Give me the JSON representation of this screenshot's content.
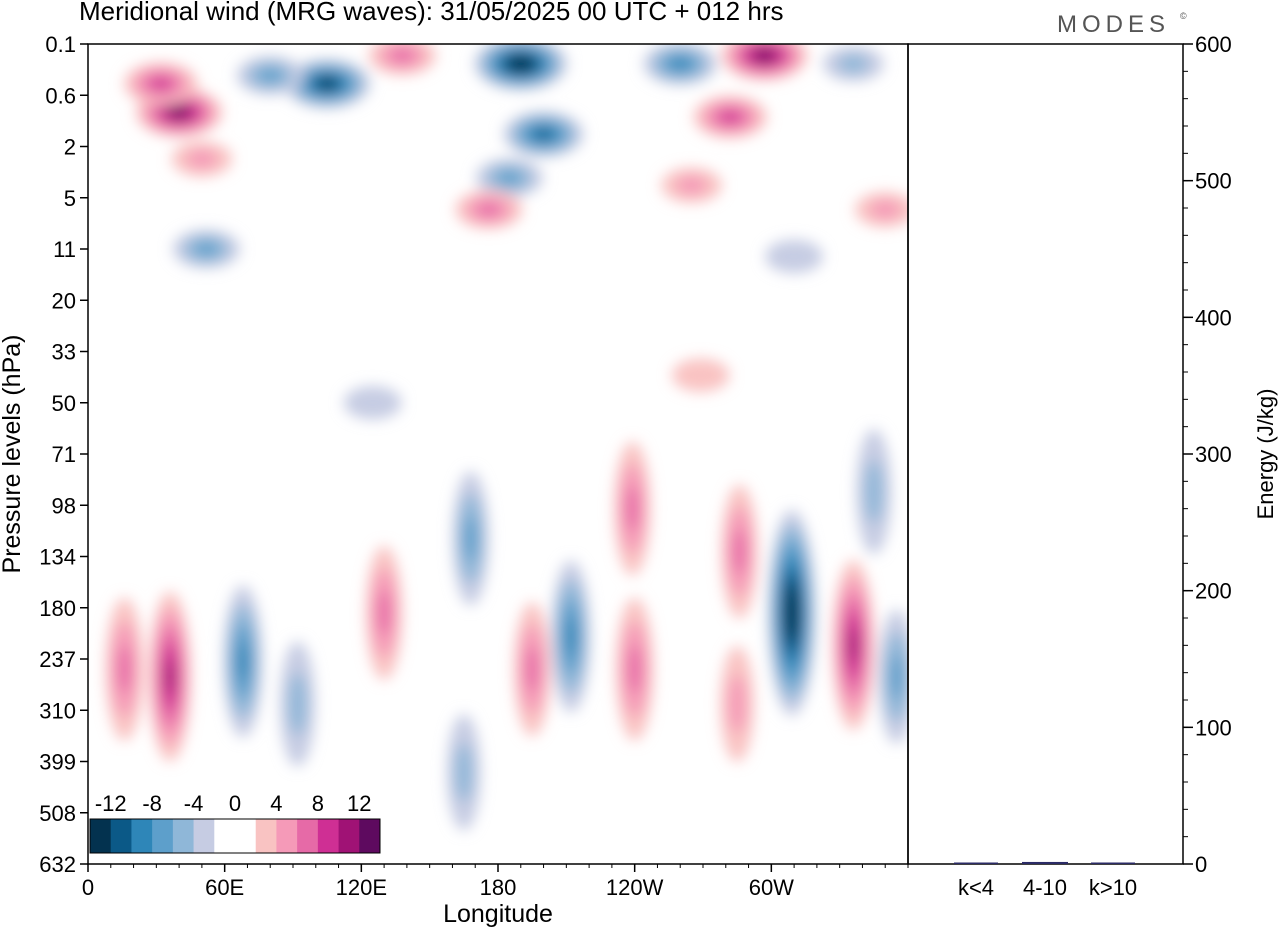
{
  "header": {
    "title": "Meridional wind (MRG waves):  31/05/2025  00 UTC  + 012 hrs",
    "logo": "MODES",
    "logo_mark": "©"
  },
  "chart_data": [
    {
      "type": "heatmap",
      "title": "Meridional wind (MRG waves):  31/05/2025  00 UTC  + 012 hrs",
      "xlabel": "Longitude",
      "ylabel": "Pressure levels (hPa)",
      "x_ticks": [
        "0",
        "60E",
        "120E",
        "180",
        "120W",
        "60W"
      ],
      "y_ticks": [
        "0.1",
        "0.6",
        "2",
        "5",
        "11",
        "20",
        "33",
        "50",
        "71",
        "98",
        "134",
        "180",
        "237",
        "310",
        "399",
        "508",
        "632"
      ],
      "colorbar": {
        "tick_labels": [
          "-12",
          "-8",
          "-4",
          "0",
          "4",
          "8",
          "12"
        ],
        "levels": [
          -14,
          -12,
          -10,
          -8,
          -6,
          -4,
          -2,
          0,
          2,
          4,
          6,
          8,
          10,
          12,
          14
        ],
        "colors": [
          "#03324f",
          "#0b5987",
          "#2e86b8",
          "#5d9fcb",
          "#8fb7d8",
          "#c6cce3",
          "#ffffff",
          "#ffffff",
          "#f9c3c2",
          "#f59ab8",
          "#e66aa7",
          "#cf2f94",
          "#a01275",
          "#5e0a5f"
        ]
      },
      "features": [
        {
          "lon": 40,
          "lev": 0.9,
          "v": 12
        },
        {
          "lon": 32,
          "lev": 0.4,
          "v": 8
        },
        {
          "lon": 50,
          "lev": 2.5,
          "v": 4
        },
        {
          "lon": 105,
          "lev": 0.4,
          "v": -12
        },
        {
          "lon": 80,
          "lev": 0.3,
          "v": -6
        },
        {
          "lon": 138,
          "lev": 0.15,
          "v": 6
        },
        {
          "lon": 190,
          "lev": 0.2,
          "v": -14
        },
        {
          "lon": 200,
          "lev": 1.5,
          "v": -10
        },
        {
          "lon": 185,
          "lev": 3.5,
          "v": -6
        },
        {
          "lon": 176,
          "lev": 6,
          "v": 6
        },
        {
          "lon": 260,
          "lev": 0.2,
          "v": -8
        },
        {
          "lon": 297,
          "lev": 0.15,
          "v": 12
        },
        {
          "lon": 282,
          "lev": 1.0,
          "v": 8
        },
        {
          "lon": 265,
          "lev": 4.0,
          "v": 4
        },
        {
          "lon": 336,
          "lev": 0.2,
          "v": -4
        },
        {
          "lon": 350,
          "lev": 6,
          "v": 4
        },
        {
          "lon": 52,
          "lev": 11,
          "v": -6
        },
        {
          "lon": 310,
          "lev": 12,
          "v": -3
        },
        {
          "lon": 269,
          "lev": 40,
          "v": 3
        },
        {
          "lon": 125,
          "lev": 50,
          "v": -3
        },
        {
          "lon": 36,
          "lev": 260,
          "v": 10
        },
        {
          "lon": 16,
          "lev": 250,
          "v": 7
        },
        {
          "lon": 68,
          "lev": 240,
          "v": -8
        },
        {
          "lon": 92,
          "lev": 300,
          "v": -5
        },
        {
          "lon": 130,
          "lev": 185,
          "v": 6
        },
        {
          "lon": 168,
          "lev": 120,
          "v": -6
        },
        {
          "lon": 165,
          "lev": 420,
          "v": -4
        },
        {
          "lon": 195,
          "lev": 250,
          "v": 6
        },
        {
          "lon": 212,
          "lev": 210,
          "v": -8
        },
        {
          "lon": 240,
          "lev": 250,
          "v": 7
        },
        {
          "lon": 239,
          "lev": 100,
          "v": 6
        },
        {
          "lon": 286,
          "lev": 130,
          "v": 6
        },
        {
          "lon": 285,
          "lev": 300,
          "v": 4
        },
        {
          "lon": 309,
          "lev": 185,
          "v": -14
        },
        {
          "lon": 336,
          "lev": 220,
          "v": 10
        },
        {
          "lon": 355,
          "lev": 260,
          "v": -6
        },
        {
          "lon": 345,
          "lev": 90,
          "v": -5
        }
      ]
    },
    {
      "type": "bar",
      "ylabel": "Energy (J/kg)",
      "categories": [
        "k<4",
        "4-10",
        "k>10"
      ],
      "values": [
        0.5,
        1.5,
        0.5
      ],
      "ylim": [
        0,
        600
      ],
      "y_ticks": [
        "0",
        "100",
        "200",
        "300",
        "400",
        "500",
        "600"
      ],
      "bar_color": "#2b2b66"
    }
  ]
}
